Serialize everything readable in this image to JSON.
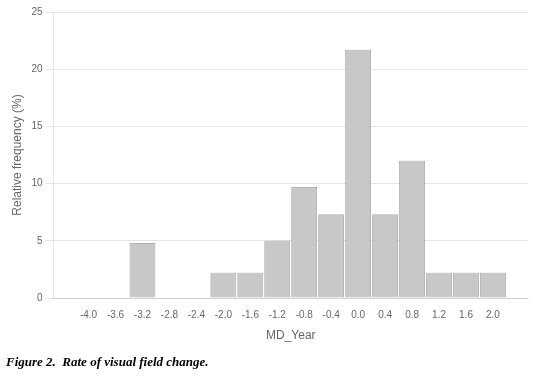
{
  "chart_data": {
    "type": "bar",
    "subtitle": "Figure 2.  Rate of visual field change.",
    "x_label": "MD_Year",
    "y_label": "Relative frequency (%)",
    "x": [
      -4.0,
      -3.6,
      -3.2,
      -2.8,
      -2.4,
      -2.0,
      -1.6,
      -1.2,
      -0.8,
      -0.4,
      0.0,
      0.4,
      0.8,
      1.2,
      1.6,
      2.0
    ],
    "values": [
      0.0,
      0.0,
      4.8,
      0.0,
      0.0,
      2.2,
      2.2,
      5.0,
      9.7,
      7.3,
      21.7,
      7.3,
      12.0,
      2.2,
      2.2,
      2.2
    ],
    "color": "#c8c8c8",
    "xlim": [
      -4.3,
      2.3
    ],
    "xticks": [
      {
        "value": -4.0,
        "label": "-4.0"
      },
      -3.6,
      -3.2,
      -2.8,
      -2.4,
      {
        "value": -2.0,
        "label": "-2.0"
      },
      -1.6,
      -1.2,
      -0.8,
      -0.4,
      {
        "value": 0.0,
        "label": "0.0"
      },
      0.4,
      0.8,
      1.2,
      1.6,
      {
        "value": 2.0,
        "label": "2.0"
      }
    ],
    "ylim": [
      0,
      25
    ],
    "yticks": [
      0,
      5,
      10,
      15,
      20,
      25
    ],
    "grid": true
  }
}
